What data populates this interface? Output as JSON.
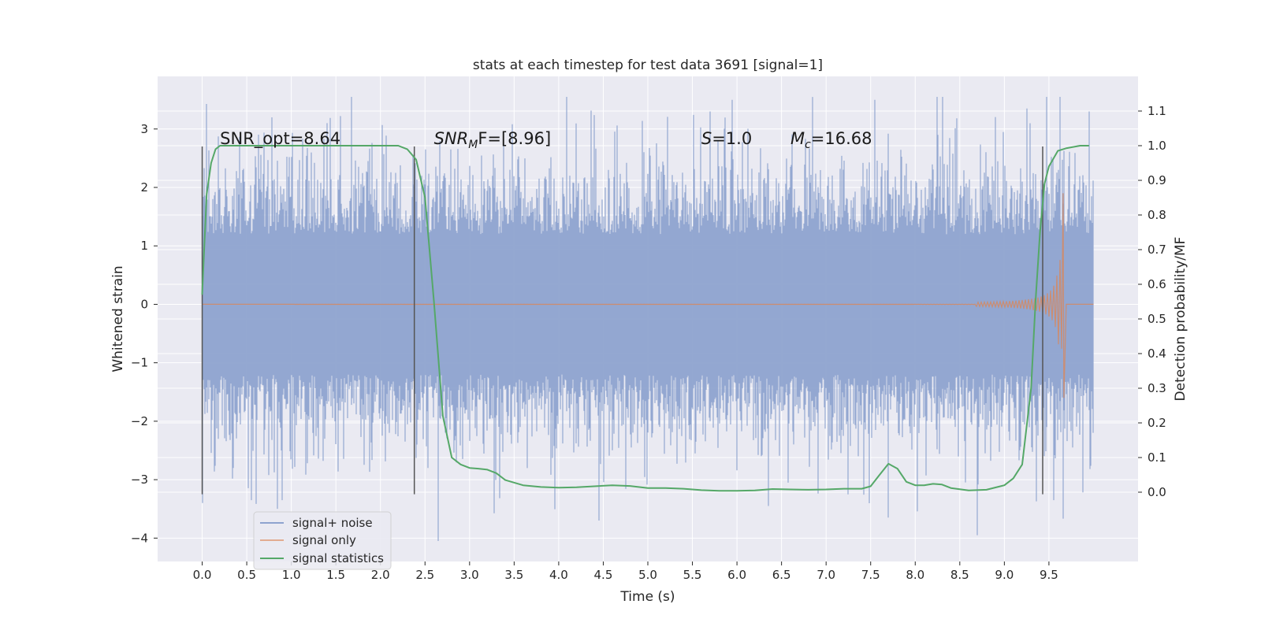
{
  "chart_data": {
    "type": "line",
    "title": "stats at each timestep for test data 3691 [signal=1]",
    "xlabel": "Time (s)",
    "ylabel": "Whitened strain",
    "ylabel_right": "Detection probability/MF",
    "xlim": [
      -0.5,
      10.5
    ],
    "ylim": [
      -4.4,
      3.9
    ],
    "ylim_right": [
      -0.2,
      1.2
    ],
    "x_ticks": [
      "0.0",
      "0.5",
      "1.0",
      "1.5",
      "2.0",
      "2.5",
      "3.0",
      "3.5",
      "4.0",
      "4.5",
      "5.0",
      "5.5",
      "6.0",
      "6.5",
      "7.0",
      "7.5",
      "8.0",
      "8.5",
      "9.0",
      "9.5"
    ],
    "y_ticks": [
      "−4",
      "−3",
      "−2",
      "−1",
      "0",
      "1",
      "2",
      "3"
    ],
    "y_ticks_right": [
      "0.0",
      "0.1",
      "0.2",
      "0.3",
      "0.4",
      "0.5",
      "0.6",
      "0.7",
      "0.8",
      "0.9",
      "1.0",
      "1.1"
    ],
    "grid": true,
    "legend_position": "lower-left",
    "colors": {
      "background": "#eaeaf2",
      "noise": "#8ea3cf",
      "signal": "#dd8452",
      "statistics": "#55a868",
      "vline": "#555555"
    },
    "annotations": [
      {
        "text": "SNR_opt=8.64",
        "x": 0.2,
        "y_right": 1.005,
        "math": false
      },
      {
        "base": "SNR",
        "sub": "M",
        "rest": "F=[8.96]",
        "x": 2.6,
        "y_right": 1.005,
        "math": true
      },
      {
        "base": "S",
        "sub": "",
        "rest": "=1.0",
        "x": 5.6,
        "y_right": 1.005,
        "math": true
      },
      {
        "base": "M",
        "sub": "c",
        "rest": "=16.68",
        "x": 6.6,
        "y_right": 1.005,
        "math": true
      }
    ],
    "vlines": [
      {
        "x": 0.0,
        "ymin": -3.25,
        "ymax": 2.7
      },
      {
        "x": 2.38,
        "ymin": -3.25,
        "ymax": 2.7
      },
      {
        "x": 9.43,
        "ymin": -3.25,
        "ymax": 2.7
      }
    ],
    "series": [
      {
        "name": "signal+ noise",
        "kind": "noise",
        "x_range": [
          0.0,
          10.0
        ],
        "amplitude_typical": 1.6,
        "spikes": [
          {
            "x": 0.0,
            "y": -3.4
          },
          {
            "x": 0.55,
            "y": -3.35
          },
          {
            "x": 0.78,
            "y": 3.2
          },
          {
            "x": 0.9,
            "y": -3.35
          },
          {
            "x": 1.4,
            "y": 3.1
          },
          {
            "x": 2.65,
            "y": -4.05
          },
          {
            "x": 4.45,
            "y": -3.7
          },
          {
            "x": 5.7,
            "y": 3.3
          },
          {
            "x": 5.95,
            "y": 3.5
          },
          {
            "x": 6.35,
            "y": -3.45
          },
          {
            "x": 7.55,
            "y": 3.5
          },
          {
            "x": 7.7,
            "y": -3.65
          },
          {
            "x": 8.7,
            "y": -3.95
          },
          {
            "x": 9.25,
            "y": 3.35
          },
          {
            "x": 9.55,
            "y": -3.35
          },
          {
            "x": 9.95,
            "y": 3.3
          }
        ]
      },
      {
        "name": "signal only",
        "kind": "chirp",
        "x_range": [
          0.0,
          10.0
        ],
        "merger_x": 9.65,
        "peak_amplitude": 1.9
      },
      {
        "name": "signal statistics",
        "kind": "line",
        "axis": "right",
        "x": [
          0.0,
          0.05,
          0.1,
          0.15,
          0.2,
          0.3,
          0.5,
          1.0,
          1.5,
          2.0,
          2.2,
          2.3,
          2.4,
          2.5,
          2.6,
          2.7,
          2.8,
          2.9,
          3.0,
          3.1,
          3.2,
          3.3,
          3.4,
          3.6,
          3.8,
          4.0,
          4.2,
          4.4,
          4.6,
          4.8,
          5.0,
          5.2,
          5.4,
          5.6,
          5.8,
          6.0,
          6.2,
          6.4,
          6.6,
          6.8,
          7.0,
          7.2,
          7.4,
          7.5,
          7.6,
          7.7,
          7.8,
          7.9,
          8.0,
          8.1,
          8.2,
          8.3,
          8.4,
          8.6,
          8.8,
          9.0,
          9.1,
          9.2,
          9.3,
          9.35,
          9.4,
          9.45,
          9.5,
          9.6,
          9.7,
          9.85,
          9.95
        ],
        "values": [
          0.57,
          0.86,
          0.95,
          0.99,
          1.0,
          1.0,
          1.0,
          1.0,
          1.0,
          1.0,
          1.0,
          0.99,
          0.96,
          0.85,
          0.55,
          0.22,
          0.1,
          0.08,
          0.07,
          0.068,
          0.065,
          0.055,
          0.035,
          0.02,
          0.015,
          0.013,
          0.014,
          0.017,
          0.02,
          0.018,
          0.012,
          0.012,
          0.01,
          0.006,
          0.004,
          0.004,
          0.005,
          0.009,
          0.008,
          0.007,
          0.008,
          0.01,
          0.01,
          0.017,
          0.05,
          0.082,
          0.068,
          0.03,
          0.02,
          0.02,
          0.024,
          0.022,
          0.012,
          0.005,
          0.007,
          0.02,
          0.04,
          0.08,
          0.3,
          0.55,
          0.75,
          0.89,
          0.94,
          0.985,
          0.993,
          1.0,
          1.0
        ]
      }
    ]
  }
}
